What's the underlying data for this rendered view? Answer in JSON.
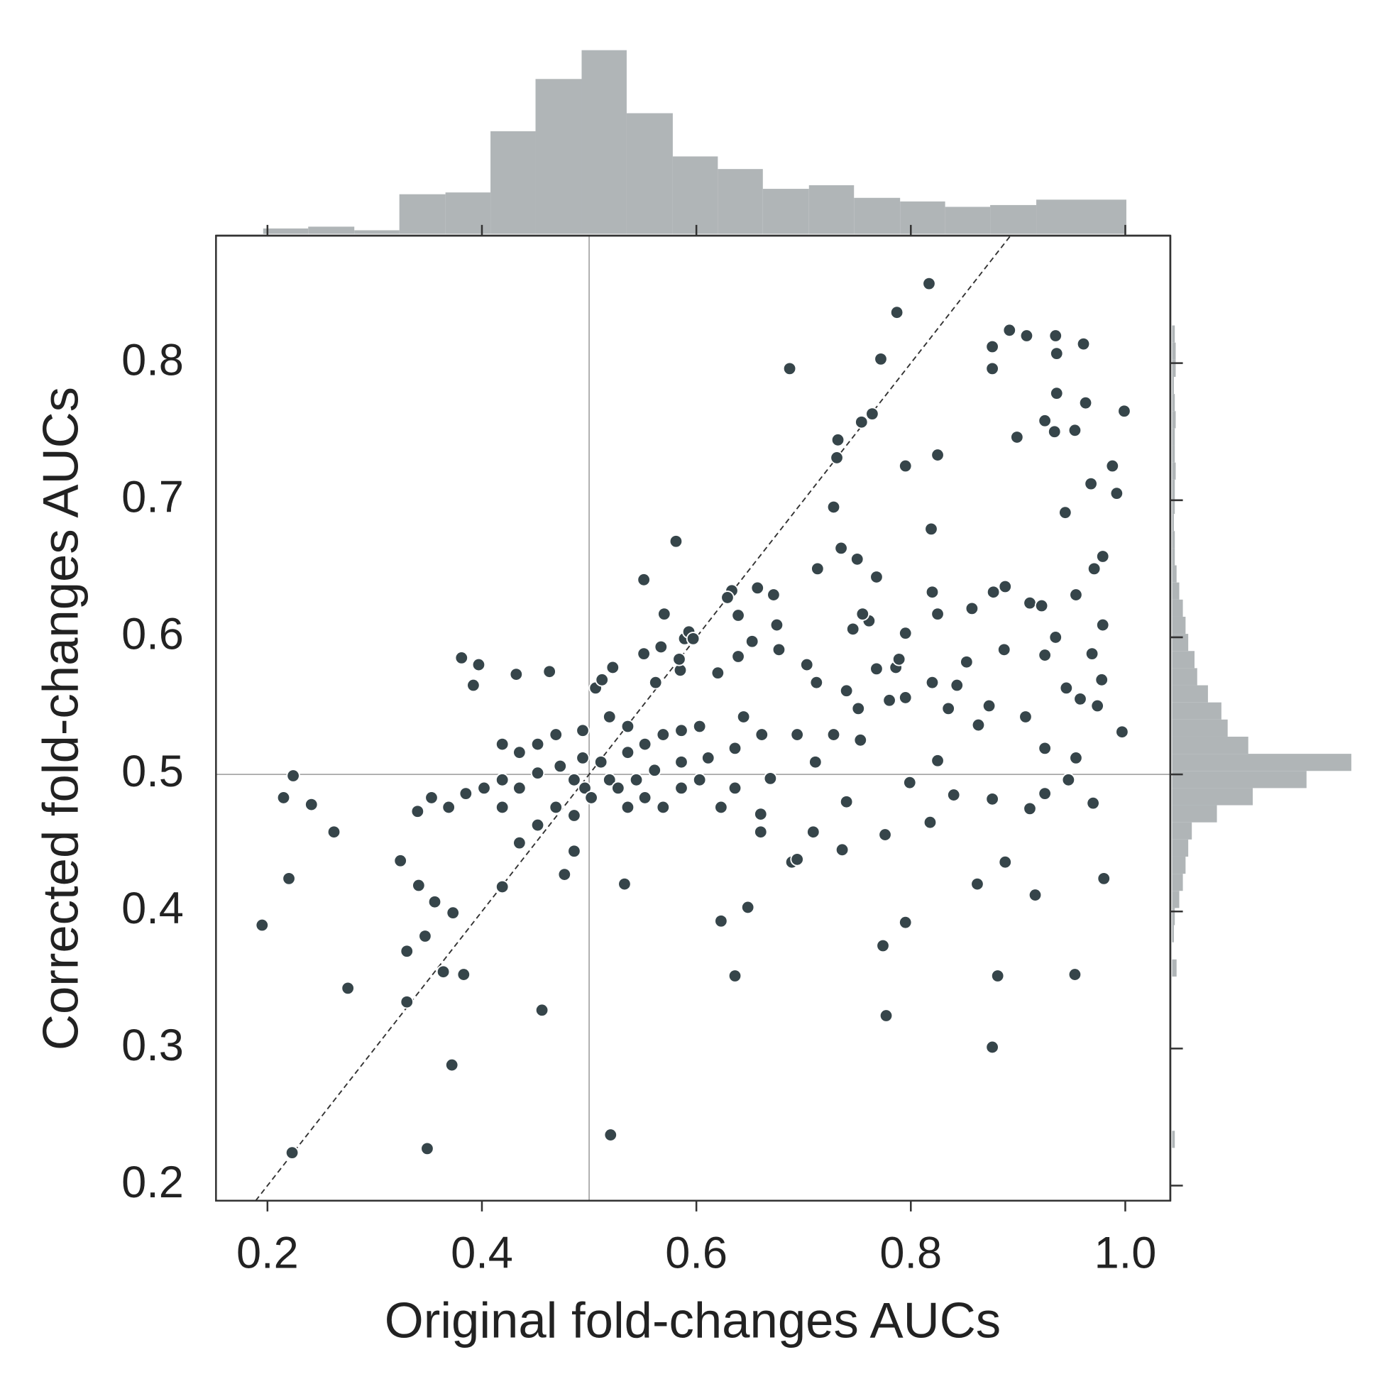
{
  "chart_data": [
    {
      "type": "scatter",
      "x_label": "Original fold-changes AUCs",
      "y_label": "Corrected fold-changes AUCs",
      "color": "#36454a",
      "xlim": [
        0.152,
        1.042
      ],
      "ylim": [
        0.189,
        0.893
      ],
      "xticks": [
        0.2,
        0.4,
        0.6,
        0.8,
        {
          "value": 1.0,
          "label": "1.0"
        }
      ],
      "yticks": [
        0.2,
        0.3,
        0.4,
        0.5,
        0.6,
        0.7,
        0.8
      ],
      "hline": 0.5,
      "vline": 0.5,
      "diagonal": true,
      "x": [
        0.195,
        0.223,
        0.22,
        0.215,
        0.224,
        0.241,
        0.262,
        0.275,
        0.33,
        0.33,
        0.324,
        0.347,
        0.341,
        0.349,
        0.356,
        0.364,
        0.372,
        0.373,
        0.383,
        0.381,
        0.397,
        0.392,
        0.432,
        0.463,
        0.456,
        0.52,
        0.533,
        0.551,
        0.581,
        0.623,
        0.636,
        0.648,
        0.687,
        0.713,
        0.728,
        0.731,
        0.732,
        0.735,
        0.754,
        0.764,
        0.772,
        0.787,
        0.817,
        0.795,
        0.825,
        0.819,
        0.774,
        0.777,
        0.795,
        0.876,
        0.881,
        0.862,
        0.888,
        0.916,
        0.953,
        0.98,
        0.876,
        0.876,
        0.892,
        0.908,
        0.935,
        0.936,
        0.961,
        0.936,
        0.963,
        0.999,
        0.925,
        0.934,
        0.953,
        0.899,
        0.988,
        0.992,
        0.968,
        0.944,
        0.979,
        0.971,
        0.877,
        0.911,
        0.922,
        0.954,
        0.888,
        0.857,
        0.82,
        0.825,
        0.997,
        0.907,
        0.925,
        0.954,
        0.974,
        0.947,
        0.97,
        0.925,
        0.911,
        0.876,
        0.84,
        0.825,
        0.799,
        0.818,
        0.74,
        0.736,
        0.709,
        0.689,
        0.694,
        0.66,
        0.66,
        0.776,
        0.753,
        0.751,
        0.78,
        0.795,
        0.835,
        0.843,
        0.852,
        0.863,
        0.873,
        0.887,
        0.925,
        0.935,
        0.945,
        0.958,
        0.969,
        0.979,
        0.978,
        0.82,
        0.786,
        0.789,
        0.795,
        0.761,
        0.755,
        0.746,
        0.75,
        0.768,
        0.768,
        0.74,
        0.703,
        0.712,
        0.675,
        0.677,
        0.672,
        0.657,
        0.633,
        0.639,
        0.652,
        0.629,
        0.62,
        0.639,
        0.57,
        0.589,
        0.567,
        0.585,
        0.584,
        0.551,
        0.522,
        0.506,
        0.512,
        0.562,
        0.593,
        0.597,
        0.452,
        0.473,
        0.486,
        0.494,
        0.496,
        0.511,
        0.519,
        0.536,
        0.552,
        0.569,
        0.586,
        0.603,
        0.419,
        0.435,
        0.419,
        0.402,
        0.385,
        0.369,
        0.353,
        0.34,
        0.469,
        0.486,
        0.502,
        0.527,
        0.544,
        0.561,
        0.536,
        0.552,
        0.452,
        0.469,
        0.435,
        0.419,
        0.494,
        0.519,
        0.536,
        0.486,
        0.477,
        0.419,
        0.452,
        0.435,
        0.586,
        0.611,
        0.636,
        0.661,
        0.644,
        0.669,
        0.603,
        0.586,
        0.569,
        0.623,
        0.636,
        0.711,
        0.694,
        0.728
      ],
      "values": [
        0.39,
        0.224,
        0.424,
        0.483,
        0.499,
        0.478,
        0.458,
        0.344,
        0.334,
        0.371,
        0.437,
        0.382,
        0.419,
        0.227,
        0.407,
        0.356,
        0.288,
        0.399,
        0.354,
        0.585,
        0.58,
        0.565,
        0.573,
        0.575,
        0.328,
        0.237,
        0.42,
        0.642,
        0.67,
        0.393,
        0.353,
        0.403,
        0.796,
        0.65,
        0.695,
        0.731,
        0.744,
        0.665,
        0.757,
        0.763,
        0.803,
        0.837,
        0.858,
        0.725,
        0.733,
        0.679,
        0.375,
        0.324,
        0.392,
        0.301,
        0.353,
        0.42,
        0.436,
        0.412,
        0.354,
        0.424,
        0.812,
        0.796,
        0.824,
        0.82,
        0.82,
        0.807,
        0.814,
        0.778,
        0.771,
        0.765,
        0.758,
        0.75,
        0.751,
        0.746,
        0.725,
        0.705,
        0.712,
        0.691,
        0.659,
        0.65,
        0.633,
        0.625,
        0.623,
        0.631,
        0.637,
        0.621,
        0.633,
        0.617,
        0.531,
        0.542,
        0.519,
        0.512,
        0.55,
        0.496,
        0.479,
        0.486,
        0.475,
        0.482,
        0.485,
        0.51,
        0.494,
        0.465,
        0.48,
        0.445,
        0.458,
        0.436,
        0.438,
        0.458,
        0.471,
        0.456,
        0.525,
        0.548,
        0.554,
        0.556,
        0.548,
        0.565,
        0.582,
        0.536,
        0.55,
        0.591,
        0.587,
        0.6,
        0.563,
        0.555,
        0.588,
        0.609,
        0.569,
        0.567,
        0.578,
        0.584,
        0.603,
        0.612,
        0.617,
        0.606,
        0.657,
        0.644,
        0.577,
        0.561,
        0.58,
        0.567,
        0.609,
        0.591,
        0.631,
        0.636,
        0.634,
        0.616,
        0.597,
        0.629,
        0.574,
        0.586,
        0.617,
        0.599,
        0.593,
        0.576,
        0.584,
        0.588,
        0.578,
        0.563,
        0.569,
        0.567,
        0.604,
        0.599,
        0.501,
        0.506,
        0.496,
        0.512,
        0.49,
        0.509,
        0.496,
        0.516,
        0.522,
        0.529,
        0.532,
        0.535,
        0.496,
        0.49,
        0.476,
        0.49,
        0.486,
        0.476,
        0.483,
        0.473,
        0.476,
        0.47,
        0.483,
        0.49,
        0.496,
        0.503,
        0.476,
        0.483,
        0.522,
        0.529,
        0.516,
        0.522,
        0.532,
        0.542,
        0.535,
        0.444,
        0.427,
        0.418,
        0.463,
        0.45,
        0.509,
        0.512,
        0.519,
        0.529,
        0.542,
        0.497,
        0.496,
        0.49,
        0.476,
        0.476,
        0.49,
        0.509,
        0.529,
        0.529
      ]
    },
    {
      "type": "histogram",
      "orientation": "vertical",
      "color": "#b0b5b7",
      "bins": [
        0.196,
        0.238,
        0.281,
        0.323,
        0.366,
        0.408,
        0.45,
        0.493,
        0.535,
        0.578,
        0.62,
        0.662,
        0.705,
        0.747,
        0.79,
        0.832,
        0.874,
        0.917,
        0.959,
        1.001
      ],
      "values": [
        3,
        4,
        2,
        22,
        23,
        57,
        86,
        102,
        67,
        43,
        36,
        25,
        27,
        20,
        18,
        15,
        16,
        19,
        19
      ]
    },
    {
      "type": "histogram",
      "orientation": "horizontal",
      "color": "#b0b5b7",
      "bins": [
        0.215,
        0.2275,
        0.24,
        0.2525,
        0.265,
        0.2775,
        0.29,
        0.3025,
        0.315,
        0.3275,
        0.34,
        0.3525,
        0.365,
        0.3775,
        0.39,
        0.4025,
        0.415,
        0.4275,
        0.44,
        0.4525,
        0.465,
        0.4775,
        0.49,
        0.5025,
        0.515,
        0.5275,
        0.54,
        0.5525,
        0.565,
        0.5775,
        0.59,
        0.6025,
        0.615,
        0.6275,
        0.64,
        0.6525,
        0.665,
        0.6775,
        0.69,
        0.7025,
        0.715,
        0.7275,
        0.74,
        0.7525,
        0.765,
        0.7775,
        0.79,
        0.8025,
        0.815,
        0.8275,
        0.84
      ],
      "values": [
        0,
        3,
        0,
        0,
        0,
        0,
        0,
        0,
        0,
        0,
        0,
        5,
        0,
        2,
        3,
        8,
        12,
        15,
        18,
        22,
        50,
        90,
        150,
        200,
        85,
        62,
        55,
        40,
        28,
        25,
        18,
        15,
        12,
        8,
        5,
        3,
        3,
        2,
        3,
        3,
        4,
        3,
        3,
        4,
        3,
        2,
        4,
        4,
        3,
        0
      ]
    }
  ]
}
